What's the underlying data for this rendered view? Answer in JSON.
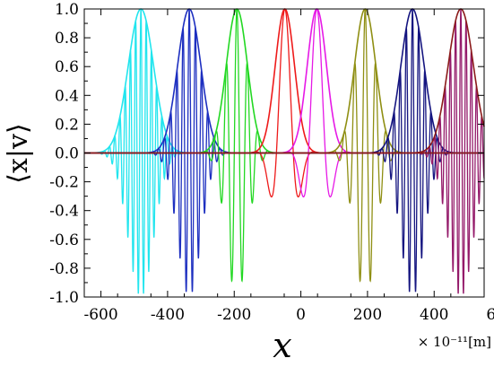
{
  "chart_data": {
    "type": "line",
    "title": "",
    "xlabel": "x",
    "ylabel": "⟨x|v⟩",
    "x_unit_label": "× 10⁻¹¹[m]",
    "xlim": [
      -650,
      550
    ],
    "ylim": [
      -1.0,
      1.0
    ],
    "x_ticks": [
      -600,
      -400,
      -200,
      0,
      200,
      400,
      600
    ],
    "x_tick_labels": [
      "-600",
      "-400",
      "-200",
      "0",
      "200",
      "400",
      "600"
    ],
    "y_ticks": [
      1.0,
      0.8,
      0.6,
      0.4,
      0.2,
      0.0,
      -0.2,
      -0.4,
      -0.6,
      -0.8,
      -1.0
    ],
    "y_tick_labels": [
      "1.0",
      "0.8",
      "0.6",
      "0.4",
      "0.2",
      "0.0",
      "-0.2",
      "-0.4",
      "-0.6",
      "-0.8",
      "-1.0"
    ],
    "grid": false,
    "legend": "none",
    "series": [
      {
        "color": "#22e5ee",
        "center": -480,
        "sigma": 38,
        "wavenumber": 0.4,
        "amplitude": 1.0
      },
      {
        "color": "#1d2fc0",
        "center": -335,
        "sigma": 35,
        "wavenumber": 0.34,
        "amplitude": 1.0
      },
      {
        "color": "#22d822",
        "center": -192,
        "sigma": 32,
        "wavenumber": 0.2,
        "amplitude": 1.0
      },
      {
        "color": "#ee1a1a",
        "center": -48,
        "sigma": 29,
        "wavenumber": 0.062,
        "amplitude": 1.0
      },
      {
        "color": "#e619e6",
        "center": 48,
        "sigma": 29,
        "wavenumber": 0.062,
        "amplitude": 1.0
      },
      {
        "color": "#8f8f13",
        "center": 193,
        "sigma": 32,
        "wavenumber": 0.2,
        "amplitude": 1.0
      },
      {
        "color": "#151580",
        "center": 335,
        "sigma": 35,
        "wavenumber": 0.34,
        "amplitude": 1.0
      },
      {
        "color": "#941a6a",
        "center": 480,
        "sigma": 38,
        "wavenumber": 0.4,
        "amplitude": 1.0
      }
    ],
    "envelope_colors": [
      "#22e5ee",
      "#1d2fc0",
      "#22d822",
      "#ee1a1a",
      "#e619e6",
      "#8f8f13",
      "#151580",
      "#8b1a1a"
    ]
  }
}
